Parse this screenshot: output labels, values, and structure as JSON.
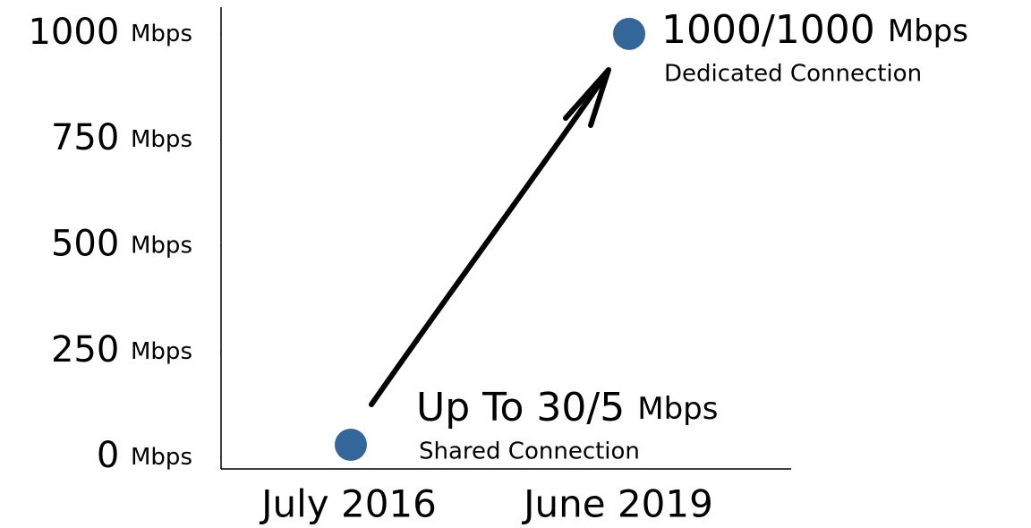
{
  "chart_data": {
    "type": "scatter",
    "categories": [
      "July 2016",
      "June 2019"
    ],
    "series": [
      {
        "color": "#336699",
        "values": [
          30,
          1000
        ],
        "value_labels": [
          "Up To 30/5 Mbps",
          "1000/1000 Mbps"
        ],
        "point_descriptions": [
          "Shared Connection",
          "Dedicated Connection"
        ]
      }
    ],
    "ylim": [
      -27,
      1063
    ],
    "yticks": [
      {
        "value": 0,
        "label": "0 Mbps"
      },
      {
        "value": 250,
        "label": "250 Mbps"
      },
      {
        "value": 500,
        "label": "500 Mbps"
      },
      {
        "value": 750,
        "label": "750 Mbps"
      },
      {
        "value": 1000,
        "label": "1000 Mbps"
      }
    ]
  }
}
